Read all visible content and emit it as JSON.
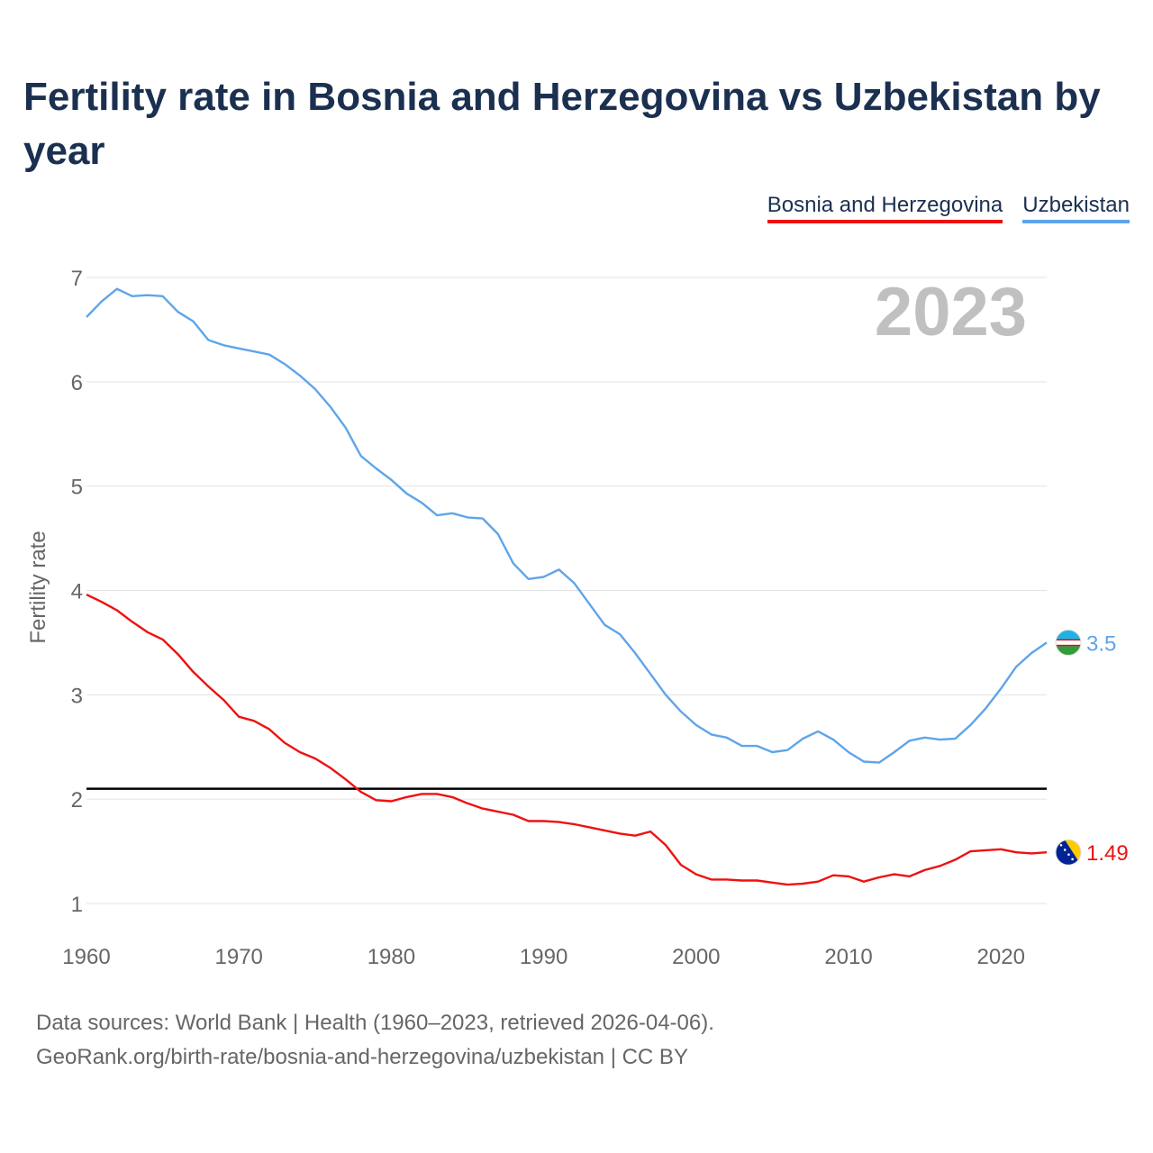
{
  "title": "Fertility rate in Bosnia and Herzegovina vs Uzbekistan by year",
  "legend": [
    {
      "label": "Bosnia and Herzegovina",
      "color": "#ee1111"
    },
    {
      "label": "Uzbekistan",
      "color": "#5ea5ea"
    }
  ],
  "year_label": "2023",
  "source": {
    "line1": "Data sources: World Bank | Health (1960–2023, retrieved 2026-04-06).",
    "line2": "GeoRank.org/birth-rate/bosnia-and-herzegovina/uzbekistan | CC BY"
  },
  "chart_data": {
    "type": "line",
    "title": "Fertility rate in Bosnia and Herzegovina vs Uzbekistan by year",
    "xlabel": "",
    "ylabel": "Fertility rate",
    "xlim": [
      1960,
      2023
    ],
    "ylim": [
      1,
      7
    ],
    "x_ticks": [
      1960,
      1970,
      1980,
      1990,
      2000,
      2010,
      2020
    ],
    "y_ticks": [
      1,
      2,
      3,
      4,
      5,
      6,
      7
    ],
    "grid": true,
    "legend_position": "top-right",
    "reference_line": 2.1,
    "x": [
      1960,
      1961,
      1962,
      1963,
      1964,
      1965,
      1966,
      1967,
      1968,
      1969,
      1970,
      1971,
      1972,
      1973,
      1974,
      1975,
      1976,
      1977,
      1978,
      1979,
      1980,
      1981,
      1982,
      1983,
      1984,
      1985,
      1986,
      1987,
      1988,
      1989,
      1990,
      1991,
      1992,
      1993,
      1994,
      1995,
      1996,
      1997,
      1998,
      1999,
      2000,
      2001,
      2002,
      2003,
      2004,
      2005,
      2006,
      2007,
      2008,
      2009,
      2010,
      2011,
      2012,
      2013,
      2014,
      2015,
      2016,
      2017,
      2018,
      2019,
      2020,
      2021,
      2022,
      2023
    ],
    "series": [
      {
        "name": "Bosnia and Herzegovina",
        "color": "#ee1111",
        "end_label": "1.49",
        "values": [
          3.96,
          3.89,
          3.81,
          3.7,
          3.6,
          3.53,
          3.39,
          3.22,
          3.08,
          2.95,
          2.79,
          2.75,
          2.67,
          2.54,
          2.45,
          2.39,
          2.3,
          2.19,
          2.07,
          1.99,
          1.98,
          2.02,
          2.05,
          2.05,
          2.02,
          1.96,
          1.91,
          1.88,
          1.85,
          1.79,
          1.79,
          1.78,
          1.76,
          1.73,
          1.7,
          1.67,
          1.65,
          1.69,
          1.56,
          1.37,
          1.28,
          1.23,
          1.23,
          1.22,
          1.22,
          1.2,
          1.18,
          1.19,
          1.21,
          1.27,
          1.26,
          1.21,
          1.25,
          1.28,
          1.26,
          1.32,
          1.36,
          1.42,
          1.5,
          1.51,
          1.52,
          1.49,
          1.48,
          1.49
        ]
      },
      {
        "name": "Uzbekistan",
        "color": "#5ea5ea",
        "end_label": "3.5",
        "values": [
          6.62,
          6.77,
          6.89,
          6.82,
          6.83,
          6.82,
          6.67,
          6.58,
          6.4,
          6.35,
          6.32,
          6.29,
          6.26,
          6.17,
          6.06,
          5.93,
          5.76,
          5.56,
          5.29,
          5.17,
          5.06,
          4.93,
          4.84,
          4.72,
          4.74,
          4.7,
          4.69,
          4.54,
          4.26,
          4.11,
          4.13,
          4.2,
          4.07,
          3.87,
          3.67,
          3.58,
          3.4,
          3.2,
          3.0,
          2.84,
          2.71,
          2.62,
          2.59,
          2.51,
          2.51,
          2.45,
          2.47,
          2.58,
          2.65,
          2.57,
          2.45,
          2.36,
          2.35,
          2.45,
          2.56,
          2.59,
          2.57,
          2.58,
          2.71,
          2.87,
          3.06,
          3.27,
          3.4,
          3.5
        ]
      }
    ]
  }
}
